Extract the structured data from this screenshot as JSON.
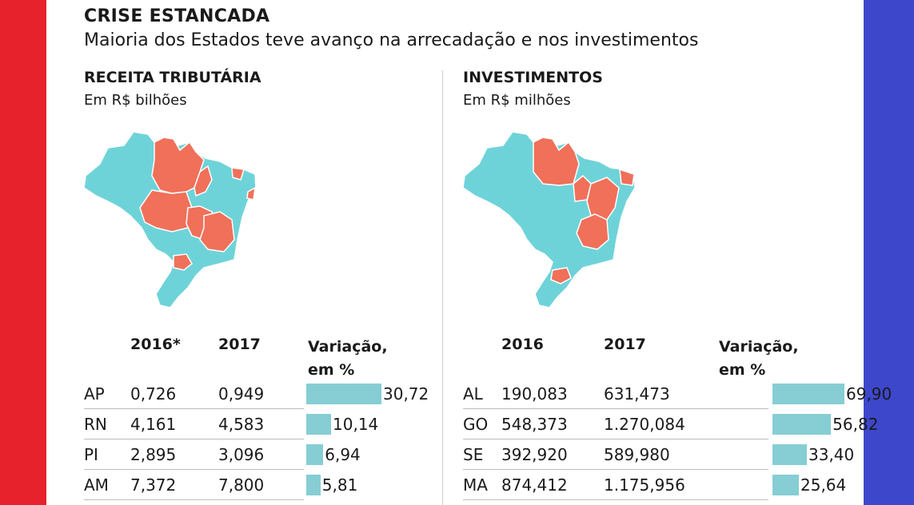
{
  "header": {
    "title": "CRISE ESTANCADA",
    "subtitle": "Maioria dos Estados teve avanço na arrecadação e nos investimentos"
  },
  "colors": {
    "left_stripe": "#e8222c",
    "right_stripe": "#3d47cb",
    "map_increase": "#6ed3d8",
    "map_other": "#f0705a",
    "bar": "#86cdd4"
  },
  "chart_data": [
    {
      "type": "table",
      "title": "RECEITA TRIBUTÁRIA",
      "unit": "Em R$ bilhões",
      "columns": [
        "",
        "2016*",
        "2017",
        "Variação,",
        "em %"
      ],
      "col_a": "2016*",
      "col_b": "2017",
      "col_c1": "Variação,",
      "col_c2": "em %",
      "rows": [
        {
          "state": "AP",
          "v2016": "0,726",
          "v2017": "0,949",
          "variation": 30.72,
          "variation_label": "30,72"
        },
        {
          "state": "RN",
          "v2016": "4,161",
          "v2017": "4,583",
          "variation": 10.14,
          "variation_label": "10,14"
        },
        {
          "state": "PI",
          "v2016": "2,895",
          "v2017": "3,096",
          "variation": 6.94,
          "variation_label": "6,94"
        },
        {
          "state": "AM",
          "v2016": "7,372",
          "v2017": "7,800",
          "variation": 5.81,
          "variation_label": "5,81"
        }
      ]
    },
    {
      "type": "table",
      "title": "INVESTIMENTOS",
      "unit": "Em R$ milhões",
      "columns": [
        "",
        "2016",
        "2017",
        "Variação,",
        "em %"
      ],
      "col_a": "2016",
      "col_b": "2017",
      "col_c1": "Variação,",
      "col_c2": "em %",
      "rows": [
        {
          "state": "AL",
          "v2016": "190,083",
          "v2017": "631,473",
          "variation": 69.9,
          "variation_label": "69,90"
        },
        {
          "state": "GO",
          "v2016": "548,373",
          "v2017": "1.270,084",
          "variation": 56.82,
          "variation_label": "56,82"
        },
        {
          "state": "SE",
          "v2016": "392,920",
          "v2017": "589,980",
          "variation": 33.4,
          "variation_label": "33,40"
        },
        {
          "state": "MA",
          "v2016": "874,412",
          "v2017": "1.175,956",
          "variation": 25.64,
          "variation_label": "25,64"
        }
      ]
    }
  ]
}
